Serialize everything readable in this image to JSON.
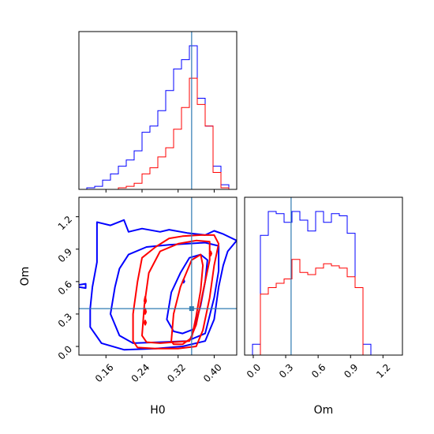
{
  "chart_data": {
    "type": "corner",
    "parameters": [
      "H0",
      "Om"
    ],
    "colors": {
      "sample_a": "#0000ff",
      "sample_b": "#ff0000",
      "truth": "#2f7bb2"
    },
    "truth": {
      "H0": 0.35,
      "Om": 0.35
    },
    "axes": {
      "H0": {
        "range": [
          0.1,
          0.45
        ],
        "ticks": [
          0.16,
          0.24,
          0.32,
          0.4
        ],
        "tick_labels": [
          "0.16",
          "0.24",
          "0.32",
          "0.40"
        ],
        "label": "H0"
      },
      "Om": {
        "range": [
          -0.08,
          1.38
        ],
        "ticks": [
          0.0,
          0.3,
          0.6,
          0.9,
          1.2
        ],
        "tick_labels": [
          "0.0",
          "0.3",
          "0.6",
          "0.9",
          "1.2"
        ],
        "label": "Om"
      }
    },
    "hist_H0": {
      "edges": [
        0.1,
        0.1175,
        0.135,
        0.1525,
        0.17,
        0.1875,
        0.205,
        0.2225,
        0.24,
        0.2575,
        0.275,
        0.2925,
        0.31,
        0.3275,
        0.345,
        0.3625,
        0.38,
        0.3975,
        0.415,
        0.4325,
        0.45
      ],
      "blue": [
        0,
        1,
        2,
        6,
        10,
        15,
        19,
        25,
        37,
        41,
        51,
        64,
        78,
        84,
        93,
        59,
        41,
        15,
        3,
        0
      ],
      "red": [
        0,
        0,
        0,
        0,
        0,
        1,
        2,
        4,
        10,
        14,
        21,
        27,
        39,
        53,
        72,
        55,
        41,
        11,
        1,
        0
      ]
    },
    "hist_Om": {
      "edges": [
        -0.08,
        -0.007,
        0.066,
        0.139,
        0.212,
        0.285,
        0.358,
        0.431,
        0.504,
        0.577,
        0.65,
        0.723,
        0.796,
        0.869,
        0.942,
        1.015,
        1.088,
        1.161,
        1.234,
        1.307,
        1.38
      ],
      "blue": [
        0,
        5,
        55,
        66,
        65,
        61,
        66,
        62,
        57,
        66,
        61,
        65,
        64,
        56,
        31,
        5,
        0,
        0,
        0,
        0
      ],
      "red": [
        0,
        0,
        28,
        31,
        33,
        35,
        44,
        38,
        37,
        40,
        42,
        41,
        40,
        36,
        31,
        0,
        0,
        0,
        0,
        0
      ]
    },
    "contours": {
      "blue": [
        [
          [
            0.1,
            0.55
          ],
          [
            0.115,
            0.54
          ],
          [
            0.115,
            0.58
          ],
          [
            0.1,
            0.57
          ]
        ],
        [
          [
            0.125,
            0.35
          ],
          [
            0.13,
            0.55
          ],
          [
            0.14,
            0.78
          ],
          [
            0.14,
            1.15
          ],
          [
            0.17,
            1.12
          ],
          [
            0.2,
            1.17
          ],
          [
            0.21,
            1.06
          ],
          [
            0.24,
            1.09
          ],
          [
            0.28,
            1.06
          ],
          [
            0.3,
            1.08
          ],
          [
            0.34,
            1.05
          ],
          [
            0.38,
            1.03
          ],
          [
            0.4,
            1.07
          ],
          [
            0.42,
            1.04
          ],
          [
            0.45,
            0.98
          ],
          [
            0.43,
            0.88
          ],
          [
            0.42,
            0.75
          ],
          [
            0.41,
            0.55
          ],
          [
            0.4,
            0.25
          ],
          [
            0.38,
            0.05
          ],
          [
            0.33,
            0.0
          ],
          [
            0.27,
            -0.02
          ],
          [
            0.2,
            -0.03
          ],
          [
            0.15,
            0.03
          ],
          [
            0.125,
            0.18
          ],
          [
            0.125,
            0.35
          ]
        ],
        [
          [
            0.17,
            0.3
          ],
          [
            0.18,
            0.55
          ],
          [
            0.19,
            0.72
          ],
          [
            0.21,
            0.85
          ],
          [
            0.25,
            0.92
          ],
          [
            0.3,
            0.94
          ],
          [
            0.34,
            0.95
          ],
          [
            0.38,
            0.96
          ],
          [
            0.41,
            0.93
          ],
          [
            0.41,
            0.7
          ],
          [
            0.4,
            0.45
          ],
          [
            0.38,
            0.12
          ],
          [
            0.34,
            0.05
          ],
          [
            0.28,
            0.04
          ],
          [
            0.22,
            0.03
          ],
          [
            0.19,
            0.1
          ],
          [
            0.17,
            0.3
          ]
        ],
        [
          [
            0.295,
            0.25
          ],
          [
            0.305,
            0.5
          ],
          [
            0.325,
            0.68
          ],
          [
            0.345,
            0.82
          ],
          [
            0.37,
            0.85
          ],
          [
            0.385,
            0.8
          ],
          [
            0.38,
            0.6
          ],
          [
            0.37,
            0.38
          ],
          [
            0.355,
            0.16
          ],
          [
            0.33,
            0.12
          ],
          [
            0.31,
            0.14
          ],
          [
            0.295,
            0.25
          ]
        ],
        [
          [
            0.33,
            0.6
          ],
          [
            0.332,
            0.62
          ],
          [
            0.334,
            0.6
          ],
          [
            0.332,
            0.59
          ],
          [
            0.33,
            0.6
          ]
        ]
      ],
      "red": [
        [
          [
            0.22,
            0.05
          ],
          [
            0.22,
            0.3
          ],
          [
            0.23,
            0.6
          ],
          [
            0.24,
            0.82
          ],
          [
            0.27,
            0.92
          ],
          [
            0.3,
            1.0
          ],
          [
            0.33,
            1.02
          ],
          [
            0.37,
            1.03
          ],
          [
            0.4,
            1.03
          ],
          [
            0.41,
            0.95
          ],
          [
            0.4,
            0.75
          ],
          [
            0.39,
            0.45
          ],
          [
            0.375,
            0.15
          ],
          [
            0.36,
            0.0
          ],
          [
            0.32,
            -0.02
          ],
          [
            0.27,
            -0.02
          ],
          [
            0.23,
            -0.01
          ],
          [
            0.22,
            0.05
          ]
        ],
        [
          [
            0.24,
            0.1
          ],
          [
            0.245,
            0.38
          ],
          [
            0.255,
            0.68
          ],
          [
            0.28,
            0.88
          ],
          [
            0.32,
            0.95
          ],
          [
            0.36,
            0.98
          ],
          [
            0.39,
            0.97
          ],
          [
            0.39,
            0.8
          ],
          [
            0.375,
            0.5
          ],
          [
            0.36,
            0.2
          ],
          [
            0.345,
            0.05
          ],
          [
            0.31,
            0.04
          ],
          [
            0.28,
            0.03
          ],
          [
            0.25,
            0.04
          ],
          [
            0.24,
            0.1
          ]
        ],
        [
          [
            0.305,
            0.05
          ],
          [
            0.31,
            0.3
          ],
          [
            0.325,
            0.55
          ],
          [
            0.35,
            0.8
          ],
          [
            0.37,
            0.85
          ],
          [
            0.375,
            0.75
          ],
          [
            0.37,
            0.52
          ],
          [
            0.36,
            0.28
          ],
          [
            0.35,
            0.08
          ],
          [
            0.33,
            0.02
          ],
          [
            0.31,
            0.02
          ],
          [
            0.305,
            0.05
          ]
        ],
        [
          [
            0.245,
            0.42
          ],
          [
            0.247,
            0.46
          ],
          [
            0.249,
            0.42
          ],
          [
            0.247,
            0.4
          ],
          [
            0.245,
            0.42
          ]
        ],
        [
          [
            0.245,
            0.32
          ],
          [
            0.247,
            0.35
          ],
          [
            0.249,
            0.32
          ],
          [
            0.247,
            0.3
          ],
          [
            0.245,
            0.32
          ]
        ],
        [
          [
            0.245,
            0.22
          ],
          [
            0.247,
            0.24
          ],
          [
            0.249,
            0.22
          ],
          [
            0.247,
            0.2
          ],
          [
            0.245,
            0.22
          ]
        ],
        [
          [
            0.39,
            0.86
          ],
          [
            0.392,
            0.88
          ],
          [
            0.394,
            0.86
          ],
          [
            0.392,
            0.84
          ],
          [
            0.39,
            0.86
          ]
        ]
      ]
    }
  }
}
